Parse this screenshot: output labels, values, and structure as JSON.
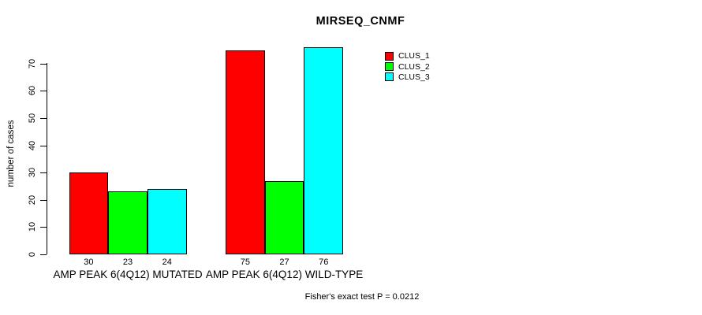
{
  "chart_data": {
    "type": "bar",
    "title": "MIRSEQ_CNMF",
    "xlabel": "",
    "ylabel": "number of cases",
    "ylim": [
      0,
      70
    ],
    "yticks": [
      0,
      10,
      20,
      30,
      40,
      50,
      60,
      70
    ],
    "grid": false,
    "legend_position": "top-right",
    "categories": [
      "AMP PEAK 6(4Q12) MUTATED",
      "AMP PEAK 6(4Q12) WILD-TYPE"
    ],
    "series": [
      {
        "name": "CLUS_1",
        "color": "#ff0000",
        "values": [
          30,
          75
        ]
      },
      {
        "name": "CLUS_2",
        "color": "#00ff00",
        "values": [
          23,
          27
        ]
      },
      {
        "name": "CLUS_3",
        "color": "#00ffff",
        "values": [
          24,
          76
        ]
      }
    ],
    "bar_value_labels": [
      [
        30,
        23,
        24
      ],
      [
        75,
        27,
        76
      ]
    ],
    "footnote": "Fisher's exact test P = 0.0212"
  },
  "colors": {
    "background": "#ffffff",
    "axis": "#000000",
    "text": "#000000"
  }
}
